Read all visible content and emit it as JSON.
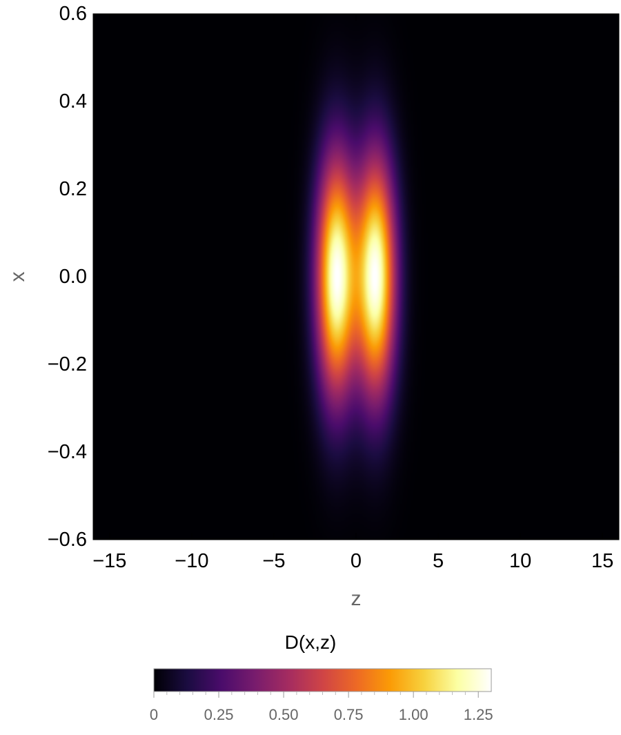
{
  "chart_data": {
    "type": "heatmap",
    "title": "",
    "xlabel": "z",
    "ylabel": "x",
    "xlim": [
      -16,
      16
    ],
    "ylim": [
      -0.6,
      0.6
    ],
    "x_ticks": [
      {
        "value": -15,
        "label": "−15"
      },
      {
        "value": -10,
        "label": "−10"
      },
      {
        "value": -5,
        "label": "−5"
      },
      {
        "value": 0,
        "label": "0"
      },
      {
        "value": 5,
        "label": "5"
      },
      {
        "value": 10,
        "label": "10"
      },
      {
        "value": 15,
        "label": "15"
      }
    ],
    "y_ticks": [
      {
        "value": 0.6,
        "label": "0.6"
      },
      {
        "value": 0.4,
        "label": "0.4"
      },
      {
        "value": 0.2,
        "label": "0.2"
      },
      {
        "value": 0.0,
        "label": "0.0"
      },
      {
        "value": -0.2,
        "label": "−0.2"
      },
      {
        "value": -0.4,
        "label": "−0.4"
      },
      {
        "value": -0.6,
        "label": "−0.6"
      }
    ],
    "grid": false,
    "colormap": "inferno",
    "colorbar": {
      "title": "D(x,z)",
      "range": [
        0,
        1.3
      ],
      "ticks": [
        {
          "value": 0,
          "label": "0"
        },
        {
          "value": 0.25,
          "label": "0.25"
        },
        {
          "value": 0.5,
          "label": "0.50"
        },
        {
          "value": 0.75,
          "label": "0.75"
        },
        {
          "value": 1.0,
          "label": "1.00"
        },
        {
          "value": 1.25,
          "label": "1.25"
        }
      ],
      "colors": [
        "#000004",
        "#1b0c41",
        "#4a0c6b",
        "#781c6d",
        "#a52c60",
        "#cf4446",
        "#ed6925",
        "#fb9b06",
        "#f7d13d",
        "#fcffa4",
        "#ffffff"
      ],
      "placement": "bottom"
    },
    "peaks": [
      {
        "z": -1.2,
        "x": 0.0,
        "value": 1.28
      },
      {
        "z": 1.2,
        "x": 0.0,
        "value": 1.28
      }
    ]
  }
}
